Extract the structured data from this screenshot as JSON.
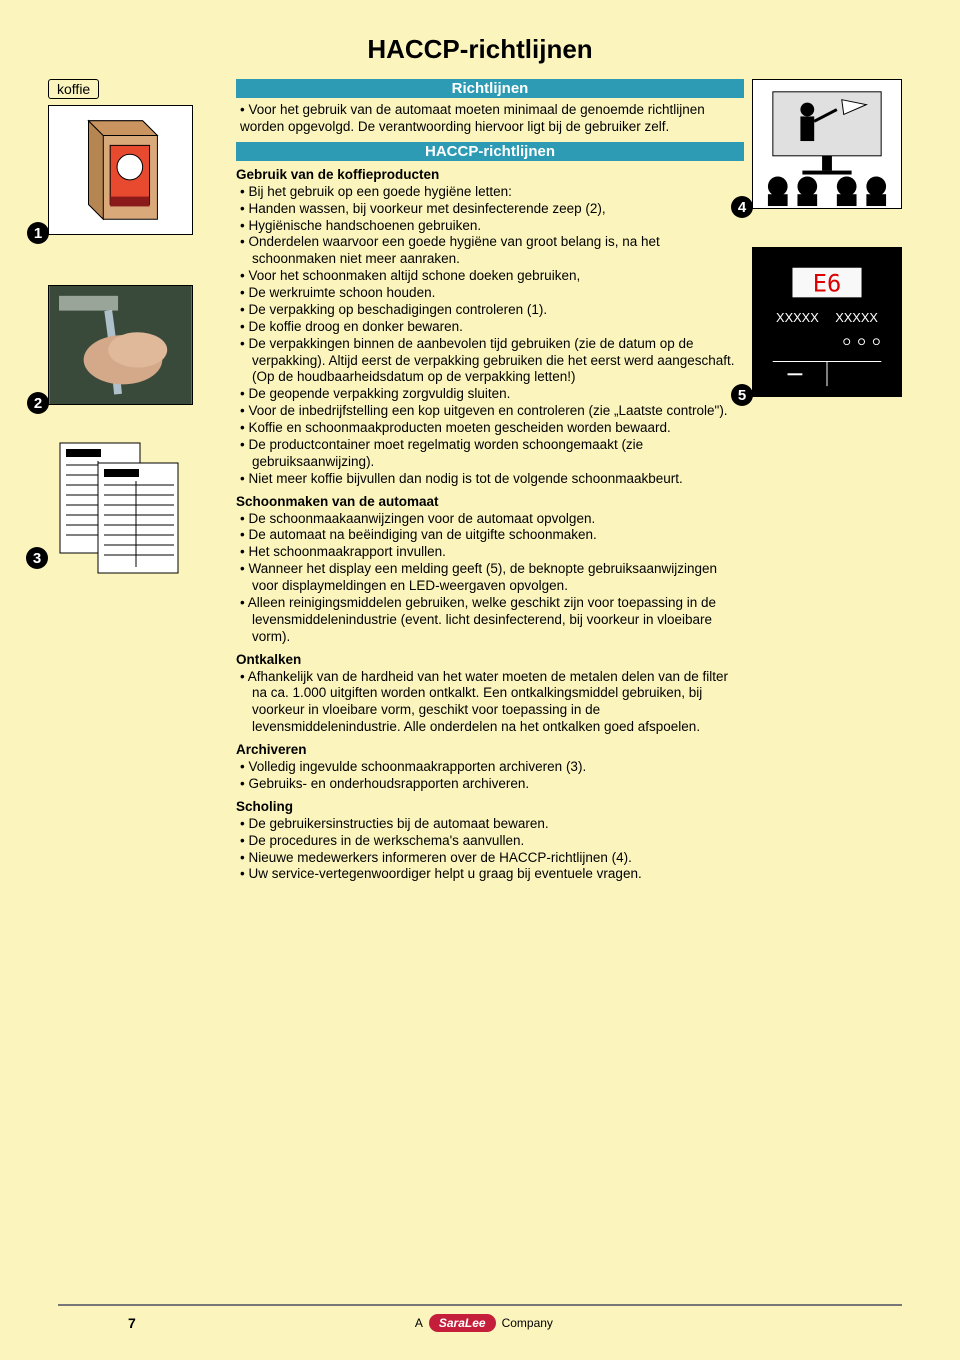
{
  "page_title": "HACCP-richtlijnen",
  "koffie_label": "koffie",
  "badges": {
    "b1": "1",
    "b2": "2",
    "b3": "3",
    "b4": "4",
    "b5": "5"
  },
  "mid": {
    "bar1": "Richtlijnen",
    "intro": "• Voor het gebruik van de automaat moeten minimaal de genoemde richtlijnen worden opgevolgd. De verantwoording hiervoor ligt bij de gebruiker zelf.",
    "bar2": "HACCP-richtlijnen",
    "sec1_head": "Gebruik van de koffieproducten",
    "sec1_items": [
      "Bij het gebruik op een goede hygiëne letten:",
      "Handen wassen, bij voorkeur met desinfecterende zeep (2),",
      "Hygiënische handschoenen gebruiken.",
      "Onderdelen waarvoor een goede hygiëne van groot belang is, na het schoonmaken niet meer aanraken.",
      "Voor het schoonmaken altijd schone doeken gebruiken,",
      "De werkruimte schoon houden.",
      "De verpakking op beschadigingen controleren (1).",
      "De koffie droog en donker bewaren.",
      "De verpakkingen binnen de aanbevolen tijd gebruiken (zie de datum op de verpakking). Altijd eerst de verpakking gebruiken die het eerst werd aangeschaft. (Op de houdbaarheidsdatum op de verpakking letten!)",
      "De geopende verpakking zorgvuldig sluiten.",
      "Voor de inbedrijfstelling een kop uitgeven en controleren (zie „Laatste controle\").",
      "Koffie en schoonmaakproducten moeten gescheiden worden bewaard.",
      "De productcontainer moet regelmatig worden schoongemaakt (zie gebruiksaanwijzing).",
      "Niet meer koffie bijvullen dan nodig is tot de volgende schoonmaakbeurt."
    ],
    "sec2_head": "Schoonmaken van de automaat",
    "sec2_items": [
      "De schoonmaakaanwijzingen voor de automaat opvolgen.",
      "De automaat na beëindiging van de uitgifte schoonmaken.",
      "Het schoonmaakrapport invullen.",
      "Wanneer het display een melding geeft (5), de beknopte gebruiksaanwijzingen voor displaymeldingen en LED-weergaven opvolgen.",
      "Alleen reinigingsmiddelen gebruiken, welke geschikt zijn voor toepassing in de levensmiddelenindustrie (event. licht desinfecterend, bij voorkeur in vloeibare vorm)."
    ],
    "sec3_head": "Ontkalken",
    "sec3_items": [
      "Afhankelijk van de hardheid van het water moeten de metalen delen van de filter na ca. 1.000 uitgiften worden ontkalkt. Een ontkalkingsmiddel gebruiken, bij voorkeur in vloeibare vorm, geschikt voor toepassing in de levensmiddelenindustrie. Alle onderdelen na het ontkalken goed afspoelen."
    ],
    "sec4_head": "Archiveren",
    "sec4_items": [
      "Volledig ingevulde schoonmaakrapporten archiveren (3).",
      "Gebruiks- en onderhoudsrapporten archiveren."
    ],
    "sec5_head": "Scholing",
    "sec5_items": [
      "De gebruikersinstructies bij de automaat bewaren.",
      "De procedures in de werkschema's aanvullen.",
      "Nieuwe medewerkers informeren over de HACCP-richtlijnen (4).",
      "Uw service-vertegenwoordiger helpt u graag bij eventuele vragen."
    ]
  },
  "display": {
    "code": "E6",
    "row1": "XXXXX",
    "row2": "XXXXX"
  },
  "footer": {
    "page": "7",
    "a": "A",
    "brand": "SaraLee",
    "company": "Company"
  },
  "colors": {
    "bg": "#fbf5bd",
    "bar": "#2d9bb3",
    "red": "#c41e3a"
  }
}
